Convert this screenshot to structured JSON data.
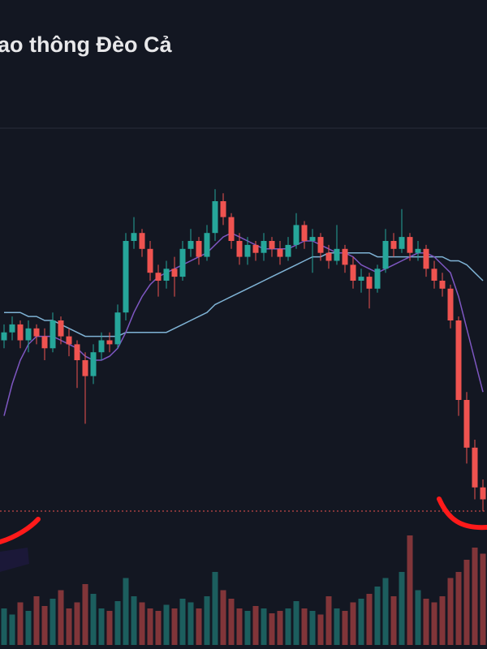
{
  "chart_data": {
    "type": "candlestick",
    "title": "ao thông Đèo Cả",
    "open": [
      45,
      47,
      49,
      45,
      48,
      46,
      43,
      50,
      46,
      44,
      40,
      36,
      42,
      45,
      44,
      52,
      70,
      72,
      68,
      62,
      60,
      63,
      61,
      68,
      70,
      66,
      72,
      80,
      76,
      70,
      66,
      69,
      67,
      70,
      68,
      66,
      69,
      74,
      70,
      71,
      67,
      65,
      68,
      64,
      60,
      61,
      58,
      63,
      70,
      68,
      71,
      67,
      68,
      63,
      60,
      58,
      50,
      30,
      18,
      8
    ],
    "high": [
      49,
      51,
      50,
      50,
      49,
      48,
      52,
      51,
      48,
      45,
      42,
      44,
      47,
      47,
      54,
      72,
      76,
      73,
      70,
      64,
      65,
      66,
      70,
      73,
      71,
      74,
      83,
      82,
      77,
      72,
      71,
      70,
      72,
      71,
      70,
      71,
      77,
      75,
      73,
      72,
      69,
      74,
      69,
      66,
      63,
      62,
      64,
      73,
      72,
      78,
      72,
      70,
      69,
      65,
      62,
      59,
      51,
      32,
      20,
      10
    ],
    "low": [
      43,
      45,
      43,
      42,
      44,
      40,
      42,
      44,
      41,
      33,
      24,
      34,
      40,
      42,
      43,
      50,
      68,
      66,
      60,
      56,
      58,
      56,
      60,
      66,
      64,
      65,
      70,
      74,
      68,
      64,
      64,
      65,
      65,
      66,
      64,
      65,
      68,
      68,
      62,
      65,
      63,
      64,
      62,
      58,
      57,
      53,
      57,
      62,
      66,
      67,
      65,
      65,
      61,
      58,
      56,
      48,
      26,
      14,
      5,
      2
    ],
    "close": [
      47,
      49,
      45,
      48,
      46,
      43,
      50,
      46,
      44,
      40,
      36,
      42,
      45,
      44,
      52,
      70,
      72,
      68,
      62,
      60,
      63,
      61,
      68,
      70,
      66,
      72,
      80,
      76,
      70,
      66,
      69,
      67,
      70,
      68,
      66,
      69,
      74,
      70,
      71,
      67,
      65,
      68,
      64,
      60,
      61,
      58,
      63,
      70,
      68,
      71,
      67,
      68,
      63,
      60,
      58,
      50,
      30,
      18,
      8,
      5
    ],
    "volume": [
      30,
      25,
      35,
      28,
      40,
      32,
      38,
      45,
      30,
      35,
      50,
      42,
      30,
      28,
      36,
      55,
      40,
      35,
      30,
      28,
      33,
      30,
      38,
      35,
      30,
      40,
      60,
      45,
      38,
      30,
      28,
      32,
      30,
      26,
      28,
      30,
      36,
      30,
      28,
      25,
      40,
      30,
      28,
      35,
      38,
      42,
      48,
      55,
      40,
      60,
      90,
      45,
      38,
      35,
      40,
      55,
      60,
      70,
      80,
      75
    ],
    "ma_fast": {
      "color": "#7e57c2",
      "values": [
        26,
        34,
        40,
        44,
        46,
        46,
        46,
        45,
        44,
        43,
        41,
        40,
        40,
        41,
        43,
        47,
        52,
        56,
        59,
        61,
        62,
        63,
        64,
        65,
        66,
        67,
        69,
        71,
        72,
        71,
        70,
        69,
        68,
        68,
        68,
        68,
        69,
        70,
        70,
        69,
        68,
        67,
        67,
        66,
        64,
        63,
        62,
        63,
        64,
        65,
        66,
        67,
        67,
        66,
        64,
        62,
        56,
        48,
        40,
        32
      ]
    },
    "ma_slow": {
      "color": "#7fb3d5",
      "values": [
        52,
        52,
        52,
        51,
        51,
        50,
        50,
        49,
        48,
        47,
        46,
        46,
        46,
        46,
        46,
        47,
        47,
        47,
        47,
        47,
        47,
        48,
        49,
        50,
        51,
        52,
        54,
        55,
        56,
        57,
        58,
        59,
        60,
        61,
        62,
        63,
        64,
        65,
        66,
        66,
        67,
        67,
        67,
        67,
        67,
        67,
        66,
        66,
        66,
        66,
        66,
        66,
        66,
        66,
        66,
        65,
        65,
        64,
        62,
        60
      ]
    },
    "up_color": "#26a69a",
    "down_color": "#ef5350",
    "ylim": [
      0,
      100
    ],
    "volume_lim": [
      0,
      100
    ]
  }
}
